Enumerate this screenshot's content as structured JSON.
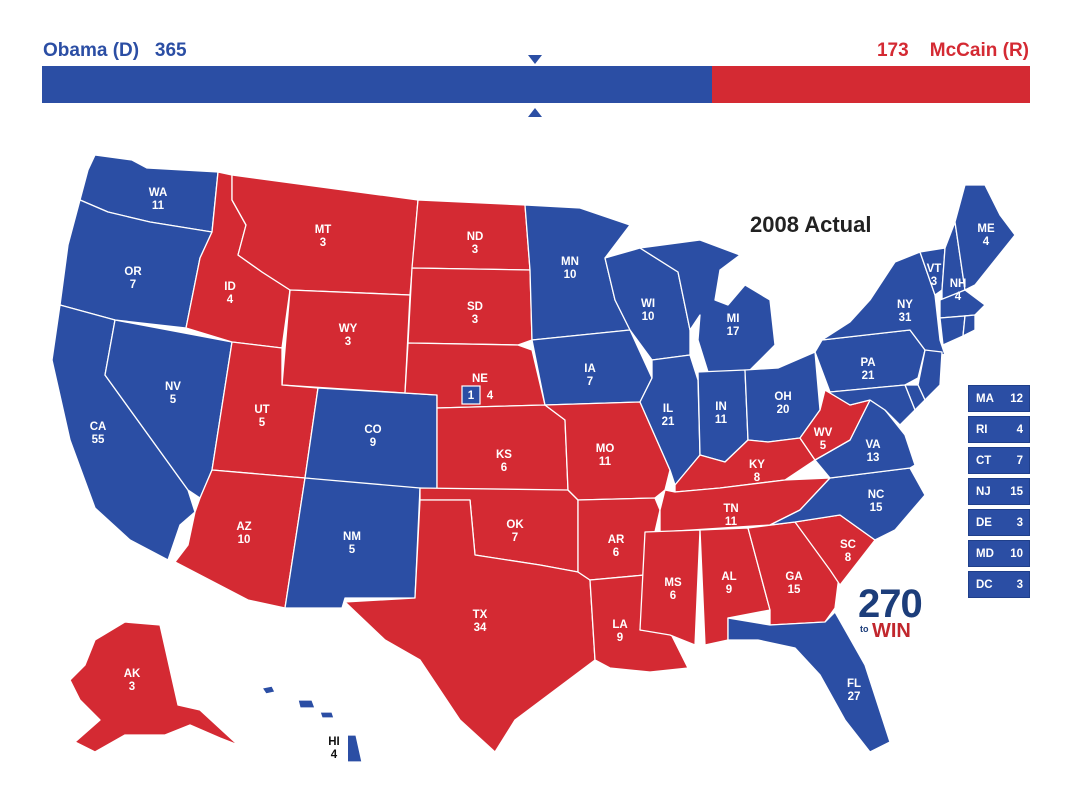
{
  "header": {
    "dem_label": "Obama (D)",
    "dem_votes": "365",
    "rep_votes": "173",
    "rep_label": "McCain (R)",
    "dem_share": 0.6784
  },
  "map_title": "2008 Actual",
  "colors": {
    "dem": "#2b4ea4",
    "rep": "#d42a33"
  },
  "states": [
    {
      "abbr": "WA",
      "ev": "11",
      "party": "dem"
    },
    {
      "abbr": "OR",
      "ev": "7",
      "party": "dem"
    },
    {
      "abbr": "CA",
      "ev": "55",
      "party": "dem"
    },
    {
      "abbr": "NV",
      "ev": "5",
      "party": "dem"
    },
    {
      "abbr": "ID",
      "ev": "4",
      "party": "rep"
    },
    {
      "abbr": "MT",
      "ev": "3",
      "party": "rep"
    },
    {
      "abbr": "WY",
      "ev": "3",
      "party": "rep"
    },
    {
      "abbr": "UT",
      "ev": "5",
      "party": "rep"
    },
    {
      "abbr": "AZ",
      "ev": "10",
      "party": "rep"
    },
    {
      "abbr": "CO",
      "ev": "9",
      "party": "dem"
    },
    {
      "abbr": "NM",
      "ev": "5",
      "party": "dem"
    },
    {
      "abbr": "ND",
      "ev": "3",
      "party": "rep"
    },
    {
      "abbr": "SD",
      "ev": "3",
      "party": "rep"
    },
    {
      "abbr": "NE",
      "ev": "4",
      "party": "rep"
    },
    {
      "abbr": "KS",
      "ev": "6",
      "party": "rep"
    },
    {
      "abbr": "OK",
      "ev": "7",
      "party": "rep"
    },
    {
      "abbr": "TX",
      "ev": "34",
      "party": "rep"
    },
    {
      "abbr": "MN",
      "ev": "10",
      "party": "dem"
    },
    {
      "abbr": "IA",
      "ev": "7",
      "party": "dem"
    },
    {
      "abbr": "MO",
      "ev": "11",
      "party": "rep"
    },
    {
      "abbr": "AR",
      "ev": "6",
      "party": "rep"
    },
    {
      "abbr": "LA",
      "ev": "9",
      "party": "rep"
    },
    {
      "abbr": "WI",
      "ev": "10",
      "party": "dem"
    },
    {
      "abbr": "IL",
      "ev": "21",
      "party": "dem"
    },
    {
      "abbr": "MI",
      "ev": "17",
      "party": "dem"
    },
    {
      "abbr": "IN",
      "ev": "11",
      "party": "dem"
    },
    {
      "abbr": "OH",
      "ev": "20",
      "party": "dem"
    },
    {
      "abbr": "KY",
      "ev": "8",
      "party": "rep"
    },
    {
      "abbr": "TN",
      "ev": "11",
      "party": "rep"
    },
    {
      "abbr": "MS",
      "ev": "6",
      "party": "rep"
    },
    {
      "abbr": "AL",
      "ev": "9",
      "party": "rep"
    },
    {
      "abbr": "GA",
      "ev": "15",
      "party": "rep"
    },
    {
      "abbr": "FL",
      "ev": "27",
      "party": "dem"
    },
    {
      "abbr": "SC",
      "ev": "8",
      "party": "rep"
    },
    {
      "abbr": "NC",
      "ev": "15",
      "party": "dem"
    },
    {
      "abbr": "VA",
      "ev": "13",
      "party": "dem"
    },
    {
      "abbr": "WV",
      "ev": "5",
      "party": "rep"
    },
    {
      "abbr": "PA",
      "ev": "21",
      "party": "dem"
    },
    {
      "abbr": "NY",
      "ev": "31",
      "party": "dem"
    },
    {
      "abbr": "VT",
      "ev": "3",
      "party": "dem"
    },
    {
      "abbr": "NH",
      "ev": "4",
      "party": "dem"
    },
    {
      "abbr": "ME",
      "ev": "4",
      "party": "dem"
    },
    {
      "abbr": "AK",
      "ev": "3",
      "party": "rep"
    },
    {
      "abbr": "HI",
      "ev": "4",
      "party": "dem"
    }
  ],
  "ne_split": {
    "dem": "1",
    "rep": "4"
  },
  "small_states": [
    {
      "abbr": "MA",
      "ev": "12"
    },
    {
      "abbr": "RI",
      "ev": "4"
    },
    {
      "abbr": "CT",
      "ev": "7"
    },
    {
      "abbr": "NJ",
      "ev": "15"
    },
    {
      "abbr": "DE",
      "ev": "3"
    },
    {
      "abbr": "MD",
      "ev": "10"
    },
    {
      "abbr": "DC",
      "ev": "3"
    }
  ],
  "logo": {
    "number": "270",
    "to": "to",
    "win": "WIN"
  }
}
